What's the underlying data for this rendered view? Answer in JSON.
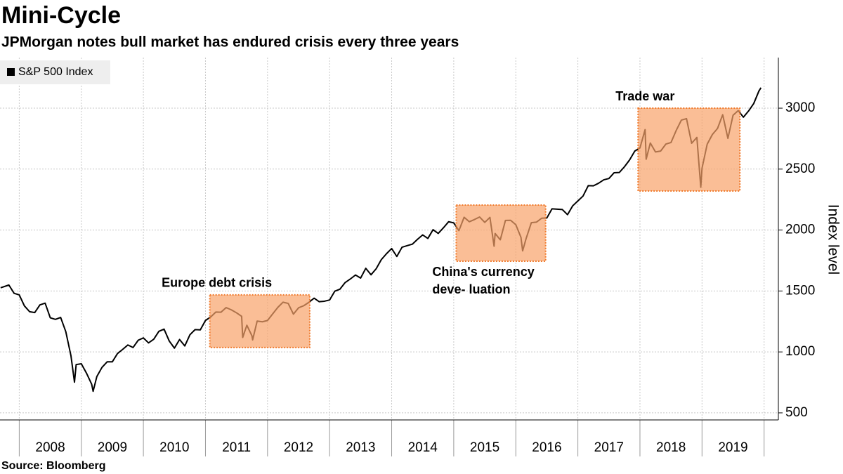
{
  "chart_data": {
    "type": "line",
    "title": "Mini-Cycle",
    "subtitle": "JPMorgan notes bull market has endured crisis every three years",
    "source": "Source: Bloomberg",
    "y_label": "Index level",
    "legend": "top-left",
    "grid": true,
    "xlim": [
      2007.69,
      2020.23
    ],
    "ylim": [
      442,
      3415
    ],
    "yticks": [
      500,
      1000,
      1500,
      2000,
      2500,
      3000
    ],
    "year_boundaries": [
      2008,
      2009,
      2010,
      2011,
      2012,
      2013,
      2014,
      2015,
      2016,
      2017,
      2018,
      2019,
      2020
    ],
    "xticks": [
      {
        "value": 2008.5,
        "label": "2008"
      },
      {
        "value": 2009.5,
        "label": "2009"
      },
      {
        "value": 2010.5,
        "label": "2010"
      },
      {
        "value": 2011.5,
        "label": "2011"
      },
      {
        "value": 2012.5,
        "label": "2012"
      },
      {
        "value": 2013.5,
        "label": "2013"
      },
      {
        "value": 2014.5,
        "label": "2014"
      },
      {
        "value": 2015.5,
        "label": "2015"
      },
      {
        "value": 2016.5,
        "label": "2016"
      },
      {
        "value": 2017.5,
        "label": "2017"
      },
      {
        "value": 2018.5,
        "label": "2018"
      },
      {
        "value": 2019.5,
        "label": "2019"
      }
    ],
    "x": [
      2007.7,
      2007.833,
      2007.917,
      2008.0,
      2008.083,
      2008.167,
      2008.25,
      2008.333,
      2008.417,
      2008.5,
      2008.583,
      2008.667,
      2008.75,
      2008.833,
      2008.89,
      2008.917,
      2009.0,
      2009.083,
      2009.167,
      2009.19,
      2009.25,
      2009.333,
      2009.417,
      2009.5,
      2009.583,
      2009.667,
      2009.75,
      2009.833,
      2009.917,
      2010.0,
      2010.083,
      2010.167,
      2010.25,
      2010.333,
      2010.417,
      2010.5,
      2010.583,
      2010.667,
      2010.75,
      2010.833,
      2010.917,
      2011.0,
      2011.083,
      2011.167,
      2011.25,
      2011.333,
      2011.417,
      2011.5,
      2011.583,
      2011.6,
      2011.667,
      2011.75,
      2011.76,
      2011.833,
      2011.917,
      2012.0,
      2012.083,
      2012.167,
      2012.25,
      2012.333,
      2012.417,
      2012.5,
      2012.583,
      2012.667,
      2012.75,
      2012.833,
      2012.917,
      2013.0,
      2013.083,
      2013.167,
      2013.25,
      2013.333,
      2013.417,
      2013.5,
      2013.583,
      2013.667,
      2013.75,
      2013.833,
      2013.917,
      2014.0,
      2014.083,
      2014.167,
      2014.25,
      2014.333,
      2014.417,
      2014.5,
      2014.583,
      2014.667,
      2014.75,
      2014.833,
      2014.917,
      2015.0,
      2015.083,
      2015.167,
      2015.25,
      2015.333,
      2015.417,
      2015.5,
      2015.583,
      2015.65,
      2015.667,
      2015.75,
      2015.833,
      2015.917,
      2016.0,
      2016.083,
      2016.11,
      2016.167,
      2016.25,
      2016.333,
      2016.417,
      2016.5,
      2016.583,
      2016.667,
      2016.75,
      2016.833,
      2016.917,
      2017.0,
      2017.083,
      2017.167,
      2017.25,
      2017.333,
      2017.417,
      2017.5,
      2017.583,
      2017.667,
      2017.75,
      2017.833,
      2017.917,
      2018.0,
      2018.083,
      2018.1,
      2018.167,
      2018.25,
      2018.333,
      2018.417,
      2018.5,
      2018.583,
      2018.667,
      2018.75,
      2018.833,
      2018.917,
      2018.98,
      2019.0,
      2019.083,
      2019.167,
      2019.25,
      2019.333,
      2019.417,
      2019.5,
      2019.583,
      2019.667,
      2019.75,
      2019.833,
      2019.917,
      2019.95
    ],
    "series": [
      {
        "name": "S&P 500 Index",
        "color": "#000000",
        "values": [
          1526,
          1549,
          1481,
          1468,
          1378,
          1330,
          1323,
          1386,
          1400,
          1280,
          1267,
          1283,
          1166,
          969,
          752,
          896,
          903,
          826,
          735,
          677,
          798,
          873,
          919,
          919,
          987,
          1021,
          1057,
          1036,
          1096,
          1115,
          1074,
          1104,
          1169,
          1187,
          1089,
          1031,
          1102,
          1049,
          1141,
          1183,
          1181,
          1258,
          1286,
          1327,
          1326,
          1364,
          1345,
          1321,
          1292,
          1119,
          1219,
          1131,
          1099,
          1253,
          1247,
          1258,
          1312,
          1366,
          1408,
          1398,
          1310,
          1362,
          1379,
          1407,
          1441,
          1412,
          1416,
          1426,
          1498,
          1515,
          1569,
          1598,
          1631,
          1606,
          1686,
          1633,
          1682,
          1757,
          1806,
          1848,
          1783,
          1859,
          1872,
          1884,
          1924,
          1960,
          1931,
          2003,
          1972,
          2018,
          2068,
          2059,
          1995,
          2105,
          2068,
          2086,
          2107,
          2063,
          2104,
          1867,
          1972,
          1920,
          2079,
          2080,
          2044,
          1940,
          1829,
          1932,
          2060,
          2065,
          2097,
          2099,
          2174,
          2171,
          2168,
          2126,
          2199,
          2239,
          2279,
          2364,
          2363,
          2384,
          2412,
          2423,
          2470,
          2472,
          2519,
          2575,
          2648,
          2674,
          2824,
          2581,
          2714,
          2641,
          2648,
          2705,
          2718,
          2816,
          2902,
          2914,
          2712,
          2760,
          2351,
          2507,
          2704,
          2784,
          2834,
          2946,
          2752,
          2942,
          2980,
          2926,
          2977,
          3038,
          3141,
          3168
        ]
      }
    ],
    "annotations": [
      {
        "lines": [
          "Europe debt crisis"
        ],
        "x0": 2011.07,
        "x1": 2012.68,
        "y0": 1036,
        "y1": 1468,
        "label_position": "above"
      },
      {
        "lines": [
          "China's currency",
          "deve- luation"
        ],
        "x0": 2015.04,
        "x1": 2016.48,
        "y0": 1744,
        "y1": 2205,
        "label_position": "below"
      },
      {
        "lines": [
          "Trade war"
        ],
        "x0": 2017.97,
        "x1": 2019.61,
        "y0": 2320,
        "y1": 3000,
        "label_position": "above"
      }
    ]
  }
}
